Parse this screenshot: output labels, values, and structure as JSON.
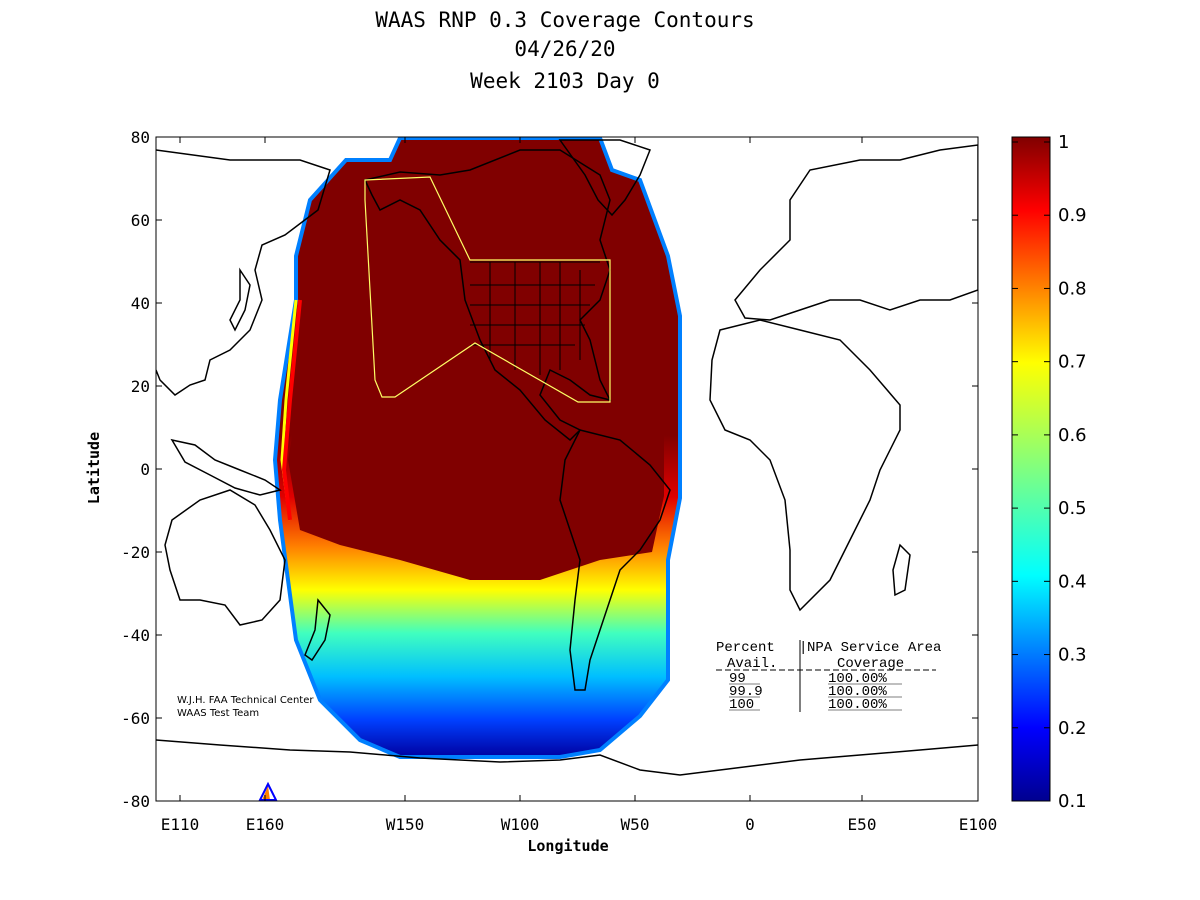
{
  "title": {
    "line1": "WAAS RNP 0.3 Coverage Contours",
    "line2": "04/26/20",
    "line3": "Week 2103 Day 0"
  },
  "axes": {
    "xlabel": "Longitude",
    "ylabel": "Latitude",
    "x_ticks": [
      "E110",
      "E160",
      "W150",
      "W100",
      "W50",
      "0",
      "E50",
      "E100"
    ],
    "y_ticks": [
      "80",
      "60",
      "40",
      "20",
      "0",
      "-20",
      "-40",
      "-60",
      "-80"
    ]
  },
  "colorbar": {
    "ticks": [
      "1",
      "0.9",
      "0.8",
      "0.7",
      "0.6",
      "0.5",
      "0.4",
      "0.3",
      "0.2",
      "0.1"
    ],
    "range": [
      0.1,
      1
    ],
    "colormap": "jet"
  },
  "credit": {
    "line1": "W.J.H. FAA Technical Center",
    "line2": "WAAS Test Team"
  },
  "coverage_table": {
    "header_col1": "Percent",
    "header_col1b": "Avail.",
    "header_col2": "NPA Service Area",
    "header_col2b": "Coverage",
    "rows": [
      {
        "avail": "99",
        "coverage": "100.00%"
      },
      {
        "avail": "99.9",
        "coverage": "100.00%"
      },
      {
        "avail": "100",
        "coverage": "100.00%"
      }
    ]
  },
  "colors": {
    "max": "#800000",
    "service_area_outline": "#ffff66"
  }
}
